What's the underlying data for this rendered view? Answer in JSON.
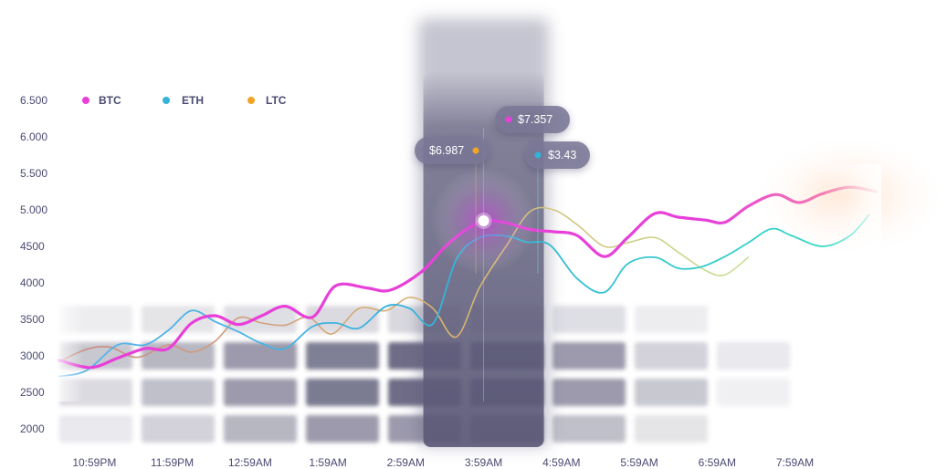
{
  "colors": {
    "btc": "#e83fd8",
    "eth": "#33b3d9",
    "ltc": "#f2a524",
    "text": "#4a4a72"
  },
  "chart_data": {
    "type": "line",
    "title": "",
    "xlabel": "",
    "ylabel": "",
    "y_tick_labels": [
      "6.500",
      "6.000",
      "5.500",
      "5.000",
      "4500",
      "4000",
      "3500",
      "3000",
      "2500",
      "2000"
    ],
    "y_ticks": [
      6500,
      6000,
      5500,
      5000,
      4500,
      4000,
      3500,
      3000,
      2500,
      2000
    ],
    "ylim": [
      1800,
      6600
    ],
    "categories": [
      "10:59PM",
      "11:59PM",
      "12:59AM",
      "1:59AM",
      "2:59AM",
      "3:59AM",
      "4:59AM",
      "5:59AM",
      "6:59AM",
      "7:59AM"
    ],
    "xlim": [
      -0.45,
      10.05
    ],
    "legend": {
      "placement": "top-left",
      "entries": [
        "BTC",
        "ETH",
        "LTC"
      ]
    },
    "highlight": {
      "category": "3:59AM",
      "index": 5
    },
    "series": [
      {
        "name": "BTC",
        "x": [
          -0.45,
          -0.05,
          0.3,
          0.65,
          0.95,
          1.25,
          1.55,
          1.85,
          2.15,
          2.45,
          2.8,
          3.1,
          3.5,
          3.8,
          4.2,
          4.5,
          4.75,
          5.0,
          5.3,
          5.6,
          5.9,
          6.2,
          6.55,
          6.85,
          7.2,
          7.5,
          7.85,
          8.1,
          8.4,
          8.75,
          9.05,
          9.35,
          9.7,
          10.05
        ],
        "y": [
          2940,
          2840,
          2970,
          3100,
          3100,
          3450,
          3550,
          3430,
          3550,
          3680,
          3530,
          3960,
          3930,
          3900,
          4150,
          4490,
          4710,
          4850,
          4820,
          4730,
          4700,
          4650,
          4360,
          4620,
          4950,
          4900,
          4860,
          4830,
          5050,
          5210,
          5100,
          5220,
          5310,
          5250
        ]
      },
      {
        "name": "ETH",
        "x": [
          -0.45,
          -0.1,
          0.3,
          0.65,
          0.95,
          1.25,
          1.55,
          1.85,
          2.15,
          2.45,
          2.8,
          3.1,
          3.4,
          3.75,
          4.05,
          4.35,
          4.65,
          4.95,
          5.3,
          5.55,
          5.85,
          6.2,
          6.55,
          6.85,
          7.2,
          7.5,
          7.8,
          8.1,
          8.4,
          8.7,
          8.95,
          9.35,
          9.7,
          9.95
        ],
        "y": [
          2720,
          2800,
          3150,
          3150,
          3350,
          3620,
          3470,
          3330,
          3170,
          3100,
          3400,
          3450,
          3380,
          3680,
          3650,
          3440,
          4320,
          4620,
          4640,
          4560,
          4520,
          4060,
          3870,
          4260,
          4350,
          4200,
          4220,
          4360,
          4550,
          4740,
          4650,
          4500,
          4640,
          4930
        ]
      },
      {
        "name": "LTC",
        "x": [
          -0.45,
          -0.1,
          0.2,
          0.55,
          0.95,
          1.25,
          1.55,
          1.85,
          2.15,
          2.45,
          2.75,
          3.05,
          3.4,
          3.75,
          4.05,
          4.35,
          4.65,
          4.95,
          5.3,
          5.6,
          5.9,
          6.2,
          6.55,
          6.85,
          7.2,
          7.5,
          7.85,
          8.1,
          8.4
        ],
        "y": [
          2920,
          3090,
          3120,
          2980,
          3150,
          3050,
          3200,
          3520,
          3450,
          3420,
          3530,
          3300,
          3650,
          3620,
          3800,
          3650,
          3260,
          3940,
          4520,
          4980,
          5000,
          4800,
          4500,
          4550,
          4620,
          4420,
          4170,
          4110,
          4350
        ]
      }
    ],
    "tooltips": [
      {
        "series": "LTC",
        "label": "$6.987"
      },
      {
        "series": "BTC",
        "label": "$7.357"
      },
      {
        "series": "ETH",
        "label": "$3.43"
      }
    ]
  }
}
